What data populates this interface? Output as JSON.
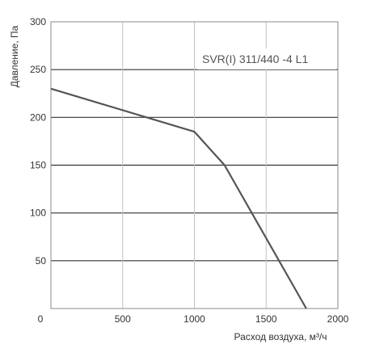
{
  "chart_data": {
    "type": "line",
    "title": "",
    "annotation": "SVR(I) 311/440 -4 L1",
    "xlabel": "Расход воздуха, м³/ч",
    "ylabel": "Давление, Па",
    "xlim": [
      0,
      2000
    ],
    "ylim": [
      0,
      300
    ],
    "x_ticks": [
      0,
      500,
      1000,
      1500,
      2000
    ],
    "y_ticks": [
      50,
      100,
      150,
      200,
      250,
      300
    ],
    "x_tick_labels": [
      "0",
      "500",
      "1000",
      "1500",
      "2000"
    ],
    "y_tick_labels": [
      "50",
      "100",
      "150",
      "200",
      "250",
      "300"
    ],
    "grid": true,
    "series": [
      {
        "color": "#555555",
        "points": [
          [
            0,
            230
          ],
          [
            1000,
            185
          ],
          [
            1210,
            150
          ],
          [
            1780,
            0
          ]
        ]
      }
    ]
  }
}
